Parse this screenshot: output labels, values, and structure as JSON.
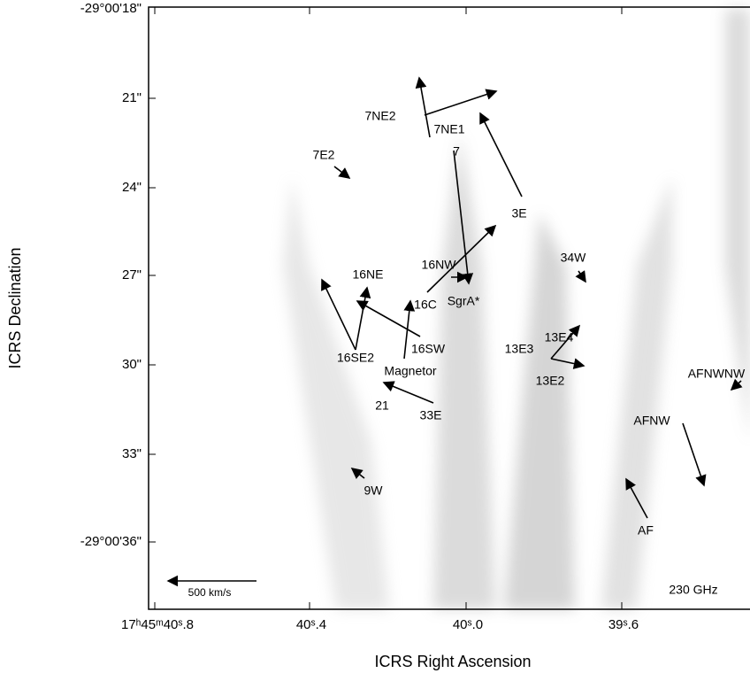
{
  "figure": {
    "x_axis": {
      "label": "ICRS Right Ascension",
      "ticks": [
        "17ʰ45ᵐ40ˢ.8",
        "40ˢ.4",
        "40ˢ.0",
        "39ˢ.6"
      ]
    },
    "y_axis": {
      "label": "ICRS Declination",
      "ticks": [
        "-29°00'18\"",
        "21\"",
        "24\"",
        "27\"",
        "30\"",
        "33\"",
        "-29°00'36\""
      ]
    },
    "sources": [
      "7NE2",
      "7NE1",
      "7",
      "7E2",
      "3E",
      "34W",
      "16NW",
      "16NE",
      "16C",
      "SgrA*",
      "13E4",
      "13E3",
      "16SW",
      "16SE2",
      "Magnetor",
      "13E2",
      "AFNWNW",
      "21",
      "33E",
      "AFNW",
      "9W",
      "AF"
    ],
    "scale_bar": "500 km/s",
    "frequency": "230 GHz"
  }
}
